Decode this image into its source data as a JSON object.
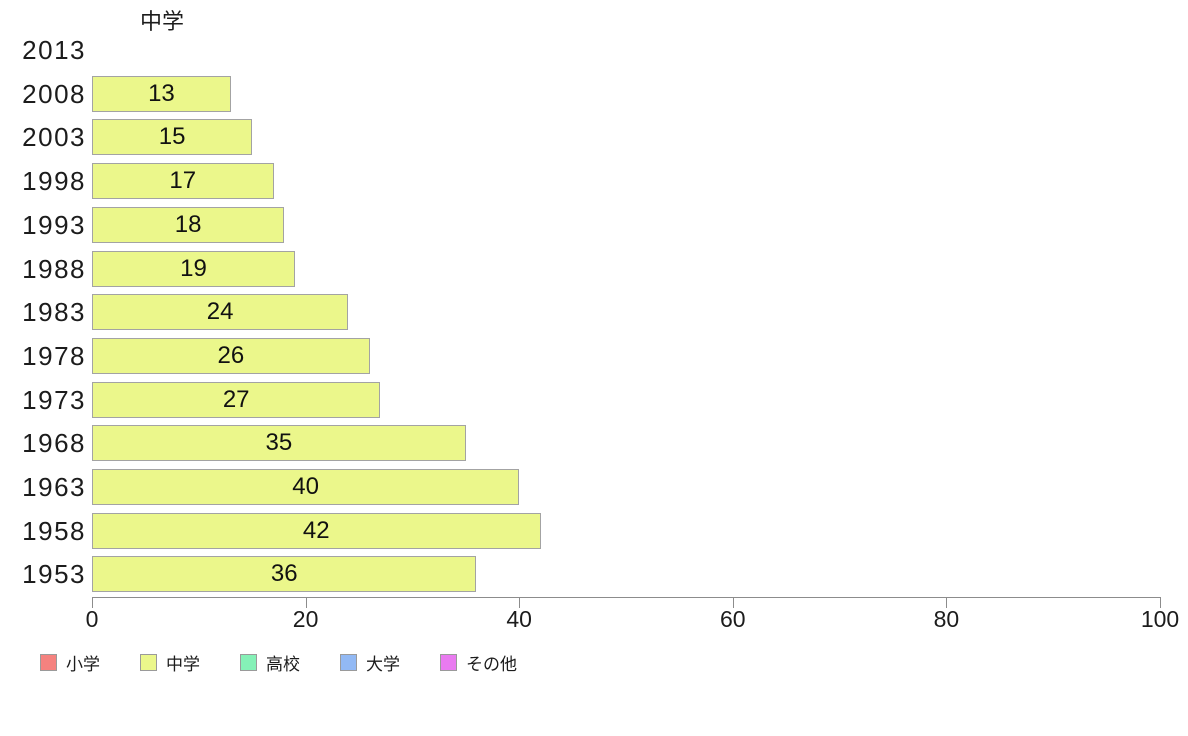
{
  "chart_data": {
    "type": "bar",
    "orientation": "horizontal",
    "title": "中学",
    "series_name": "中学",
    "categories": [
      "2013",
      "2008",
      "2003",
      "1998",
      "1993",
      "1988",
      "1983",
      "1978",
      "1973",
      "1968",
      "1963",
      "1958",
      "1953"
    ],
    "values": [
      null,
      13,
      15,
      17,
      18,
      19,
      24,
      26,
      27,
      35,
      40,
      42,
      36
    ],
    "xlabel": "",
    "ylabel": "",
    "xlim": [
      0,
      100
    ],
    "x_ticks": [
      0,
      20,
      40,
      60,
      80,
      100
    ],
    "grid": false,
    "bar_color": "#ebf78b",
    "bar_border_color": "#a3a3a3",
    "legend_position": "bottom",
    "legend": [
      {
        "label": "小学",
        "color": "#f5827f"
      },
      {
        "label": "中学",
        "color": "#ebf78b"
      },
      {
        "label": "高校",
        "color": "#85f1b7"
      },
      {
        "label": "大学",
        "color": "#92b9f4"
      },
      {
        "label": "その他",
        "color": "#e97bf0"
      }
    ]
  }
}
